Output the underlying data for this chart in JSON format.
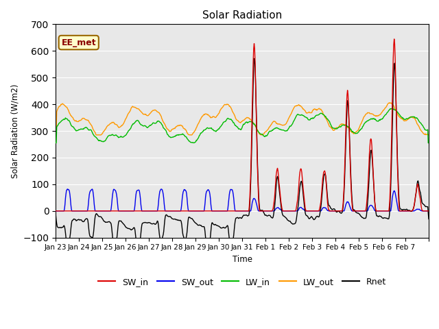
{
  "title": "Solar Radiation",
  "ylabel": "Solar Radiation (W/m2)",
  "xlabel": "Time",
  "watermark": "EE_met",
  "ylim": [
    -100,
    700
  ],
  "yticks": [
    -100,
    0,
    100,
    200,
    300,
    400,
    500,
    600,
    700
  ],
  "colors": {
    "SW_in": "#dd0000",
    "SW_out": "#0000ee",
    "LW_in": "#00bb00",
    "LW_out": "#ff9900",
    "Rnet": "#000000"
  },
  "bg_color": "#e8e8e8",
  "line_width": 1.0,
  "n_days": 16,
  "day_labels": [
    "Jan 23",
    "Jan 24",
    "Jan 25",
    "Jan 26",
    "Jan 27",
    "Jan 28",
    "Jan 29",
    "Jan 30",
    "Jan 31",
    "Feb 1",
    "Feb 2",
    "Feb 3",
    "Feb 4",
    "Feb 5",
    "Feb 6",
    "Feb 7"
  ]
}
